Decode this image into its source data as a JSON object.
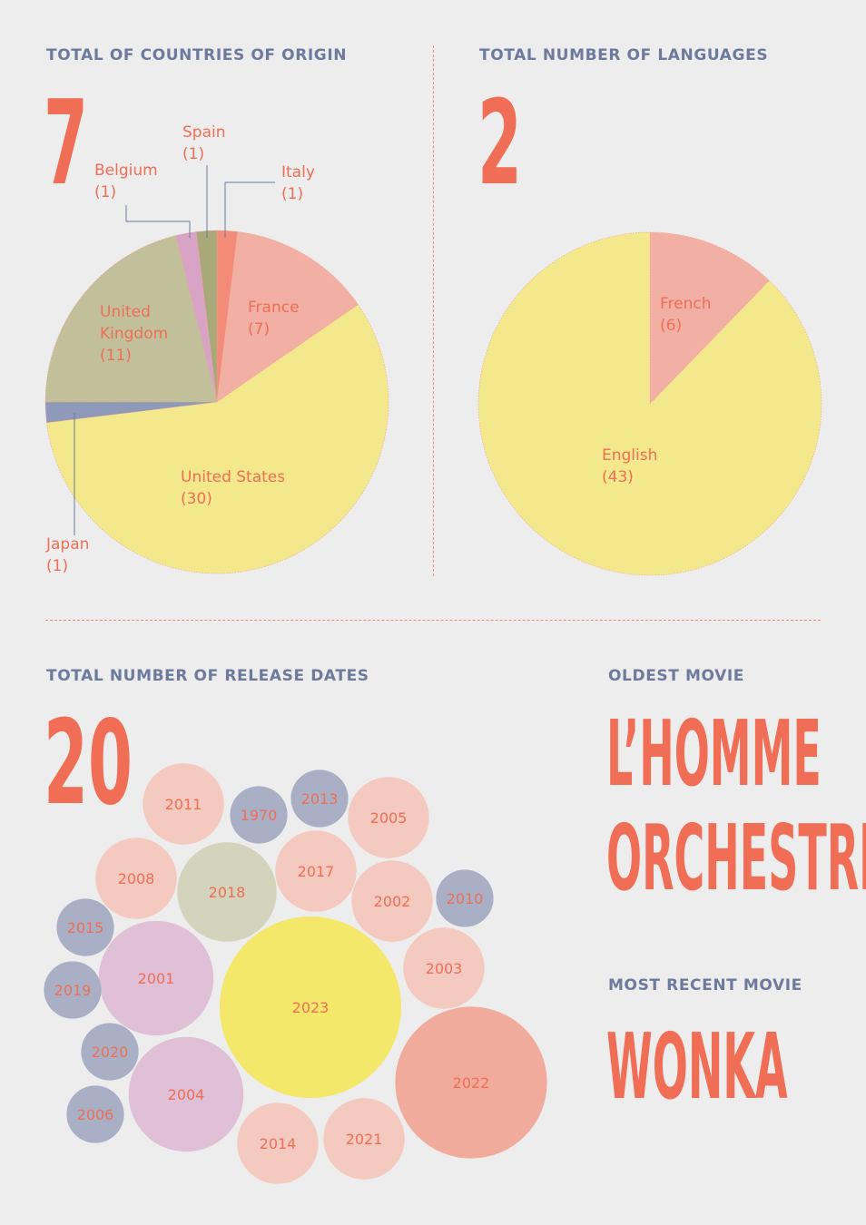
{
  "sections": {
    "countries_heading": "TOTAL OF COUNTRIES OF ORIGIN",
    "countries_total": "7",
    "languages_heading": "TOTAL NUMBER OF LANGUAGES",
    "languages_total": "2",
    "release_heading": "TOTAL NUMBER OF RELEASE DATES",
    "release_total": "20",
    "oldest_heading": "OLDEST MOVIE",
    "oldest_line1": "L’HOMME",
    "oldest_line2": "ORCHESTRE",
    "recent_heading": "MOST RECENT MOVIE",
    "recent_title": "WONKA"
  },
  "chart_data": [
    {
      "type": "pie",
      "start_angle": "12 o'clock, clockwise",
      "slices": [
        {
          "name": "Italy",
          "value": 1,
          "color": "#f28c78"
        },
        {
          "name": "France",
          "value": 7,
          "color": "#f2b0a4"
        },
        {
          "name": "United States",
          "value": 30,
          "color": "#f3e98c"
        },
        {
          "name": "Japan",
          "value": 1,
          "color": "#8f9abb"
        },
        {
          "name": "United Kingdom",
          "value": 11,
          "color": "#c1c09a"
        },
        {
          "name": "Belgium",
          "value": 1,
          "color": "#d7a4c6"
        },
        {
          "name": "Spain",
          "value": 1,
          "color": "#a9a879"
        }
      ],
      "labels": [
        {
          "line1": "Italy",
          "line2": "(1)"
        },
        {
          "line1": "France",
          "line2": "(7)"
        },
        {
          "line1": "United States",
          "line2": "(30)"
        },
        {
          "line1": "Japan",
          "line2": "(1)"
        },
        {
          "line1": "United",
          "line2": "Kingdom",
          "line3": "(11)"
        },
        {
          "line1": "Belgium",
          "line2": "(1)"
        },
        {
          "line1": "Spain",
          "line2": "(1)"
        }
      ]
    },
    {
      "type": "pie",
      "start_angle": "12 o'clock, clockwise",
      "slices": [
        {
          "name": "French",
          "value": 6,
          "color": "#f2b0a4"
        },
        {
          "name": "English",
          "value": 43,
          "color": "#f3e98c"
        }
      ],
      "labels": [
        {
          "line1": "French",
          "line2": "(6)"
        },
        {
          "line1": "English",
          "line2": "(43)"
        }
      ]
    },
    {
      "type": "bubble",
      "size_scale": "area proportional to count",
      "bubbles": [
        {
          "label": "2011",
          "count": 2,
          "color": "#f4c9bf"
        },
        {
          "label": "1970",
          "count": 1,
          "color": "#a9b0c6"
        },
        {
          "label": "2013",
          "count": 1,
          "color": "#a9b0c6"
        },
        {
          "label": "2005",
          "count": 2,
          "color": "#f4c9bf"
        },
        {
          "label": "2008",
          "count": 2,
          "color": "#f4c9bf"
        },
        {
          "label": "2018",
          "count": 3,
          "color": "#d3d4bb"
        },
        {
          "label": "2017",
          "count": 2,
          "color": "#f4c9bf"
        },
        {
          "label": "2002",
          "count": 2,
          "color": "#f4c9bf"
        },
        {
          "label": "2010",
          "count": 1,
          "color": "#a9b0c6"
        },
        {
          "label": "2015",
          "count": 1,
          "color": "#a9b0c6"
        },
        {
          "label": "2001",
          "count": 4,
          "color": "#e0c0d6"
        },
        {
          "label": "2003",
          "count": 2,
          "color": "#f4c9bf"
        },
        {
          "label": "2019",
          "count": 1,
          "color": "#a9b0c6"
        },
        {
          "label": "2023",
          "count": 10,
          "color": "#f3e869"
        },
        {
          "label": "2022",
          "count": 7,
          "color": "#f0ab9c"
        },
        {
          "label": "2020",
          "count": 1,
          "color": "#a9b0c6"
        },
        {
          "label": "2004",
          "count": 4,
          "color": "#e0c0d6"
        },
        {
          "label": "2006",
          "count": 1,
          "color": "#a9b0c6"
        },
        {
          "label": "2014",
          "count": 2,
          "color": "#f4c9bf"
        },
        {
          "label": "2021",
          "count": 2,
          "color": "#f4c9bf"
        }
      ]
    }
  ]
}
